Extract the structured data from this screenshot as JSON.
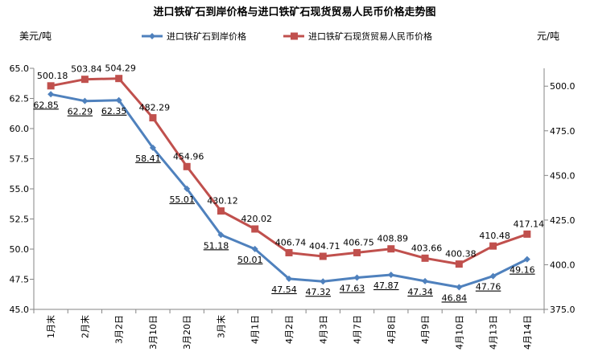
{
  "chart_data": {
    "type": "line",
    "title": "进口铁矿石到岸价格与进口铁矿石现货贸易人民币价格走势图",
    "ylabel_left": "美元/吨",
    "ylabel_right": "元/吨",
    "categories": [
      "1月末",
      "2月末",
      "3月2日",
      "3月10日",
      "3月20日",
      "3月末",
      "4月1日",
      "4月2日",
      "4月3日",
      "4月7日",
      "4月8日",
      "4月9日",
      "4月10日",
      "4月13日",
      "4月14日"
    ],
    "y_left": {
      "min": 45.0,
      "max": 65.0,
      "ticks": [
        "45.0",
        "47.5",
        "50.0",
        "52.5",
        "55.0",
        "57.5",
        "60.0",
        "62.5",
        "65.0"
      ]
    },
    "y_right": {
      "min": 375.0,
      "max": 510.0,
      "ticks": [
        "375.0",
        "400.0",
        "425.0",
        "450.0",
        "475.0",
        "500.0"
      ]
    },
    "grid": false,
    "legend_position": "top",
    "series": [
      {
        "name": "进口铁矿石到岸价格",
        "axis": "left",
        "color": "#4F81BD",
        "marker": "diamond",
        "values": [
          62.85,
          62.29,
          62.35,
          58.41,
          55.01,
          51.18,
          50.01,
          47.54,
          47.32,
          47.63,
          47.87,
          47.34,
          46.84,
          47.76,
          49.16
        ],
        "labels": [
          "62.85",
          "62.29",
          "62.35",
          "58.41",
          "55.01",
          "51.18",
          "50.01",
          "47.54",
          "47.32",
          "47.63",
          "47.87",
          "47.34",
          "46.84",
          "47.76",
          "49.16"
        ]
      },
      {
        "name": "进口铁矿石现货贸易人民币价格",
        "axis": "right",
        "color": "#C0504D",
        "marker": "square",
        "values": [
          500.18,
          503.84,
          504.29,
          482.29,
          454.96,
          430.12,
          420.02,
          406.74,
          404.71,
          406.75,
          408.89,
          403.66,
          400.38,
          410.48,
          417.14
        ],
        "labels": [
          "500.18",
          "503.84",
          "504.29",
          "482.29",
          "454.96",
          "430.12",
          "420.02",
          "406.74",
          "404.71",
          "406.75",
          "408.89",
          "403.66",
          "400.38",
          "410.48",
          "417.14"
        ]
      }
    ]
  }
}
